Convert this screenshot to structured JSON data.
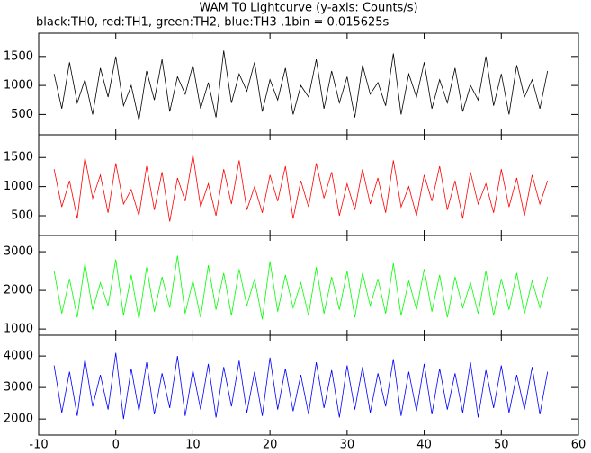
{
  "chart_data": [
    {
      "type": "line",
      "title": "WAM T0 Lightcurve (y-axis: Counts/s)",
      "subtitle": "black:TH0, red:TH1, green:TH2, blue:TH3 ,1bin = 0.015625s",
      "x": [
        -8,
        -7,
        -6,
        -5,
        -4,
        -3,
        -2,
        -1,
        0,
        1,
        2,
        3,
        4,
        5,
        6,
        7,
        8,
        9,
        10,
        11,
        12,
        13,
        14,
        15,
        16,
        17,
        18,
        19,
        20,
        21,
        22,
        23,
        24,
        25,
        26,
        27,
        28,
        29,
        30,
        31,
        32,
        33,
        34,
        35,
        36,
        37,
        38,
        39,
        40,
        41,
        42,
        43,
        44,
        45,
        46,
        47,
        48,
        49,
        50,
        51,
        52,
        53,
        54,
        55,
        56
      ],
      "values": [
        1200,
        600,
        1400,
        700,
        1100,
        500,
        1300,
        800,
        1500,
        650,
        1000,
        400,
        1250,
        750,
        1450,
        550,
        1150,
        850,
        1350,
        600,
        1050,
        450,
        1600,
        700,
        1200,
        900,
        1400,
        550,
        1100,
        750,
        1300,
        500,
        1000,
        800,
        1450,
        600,
        1250,
        700,
        1150,
        450,
        1350,
        850,
        1050,
        650,
        1550,
        500,
        1200,
        800,
        1400,
        600,
        1100,
        700,
        1300,
        550,
        1000,
        750,
        1500,
        650,
        1200,
        500,
        1350,
        800,
        1100,
        600,
        1250
      ],
      "color": "#000000",
      "xlim": [
        -10,
        60
      ],
      "ylim": [
        150,
        1900
      ],
      "yticks": [
        500,
        1000,
        1500
      ]
    },
    {
      "type": "line",
      "x": [
        -8,
        -7,
        -6,
        -5,
        -4,
        -3,
        -2,
        -1,
        0,
        1,
        2,
        3,
        4,
        5,
        6,
        7,
        8,
        9,
        10,
        11,
        12,
        13,
        14,
        15,
        16,
        17,
        18,
        19,
        20,
        21,
        22,
        23,
        24,
        25,
        26,
        27,
        28,
        29,
        30,
        31,
        32,
        33,
        34,
        35,
        36,
        37,
        38,
        39,
        40,
        41,
        42,
        43,
        44,
        45,
        46,
        47,
        48,
        49,
        50,
        51,
        52,
        53,
        54,
        55,
        56
      ],
      "values": [
        1300,
        650,
        1100,
        450,
        1500,
        800,
        1200,
        550,
        1400,
        700,
        950,
        500,
        1350,
        600,
        1250,
        400,
        1150,
        750,
        1550,
        650,
        1050,
        500,
        1300,
        700,
        1450,
        600,
        1000,
        550,
        1200,
        750,
        1350,
        450,
        1100,
        650,
        1400,
        800,
        1250,
        500,
        1050,
        600,
        1300,
        700,
        1150,
        550,
        1450,
        650,
        1000,
        500,
        1200,
        750,
        1350,
        600,
        1100,
        450,
        1250,
        700,
        1050,
        550,
        1300,
        650,
        1150,
        500,
        1200,
        700,
        1100
      ],
      "color": "#ff0000",
      "xlim": [
        -10,
        60
      ],
      "ylim": [
        160,
        1890
      ],
      "yticks": [
        500,
        1000,
        1500
      ]
    },
    {
      "type": "line",
      "x": [
        -8,
        -7,
        -6,
        -5,
        -4,
        -3,
        -2,
        -1,
        0,
        1,
        2,
        3,
        4,
        5,
        6,
        7,
        8,
        9,
        10,
        11,
        12,
        13,
        14,
        15,
        16,
        17,
        18,
        19,
        20,
        21,
        22,
        23,
        24,
        25,
        26,
        27,
        28,
        29,
        30,
        31,
        32,
        33,
        34,
        35,
        36,
        37,
        38,
        39,
        40,
        41,
        42,
        43,
        44,
        45,
        46,
        47,
        48,
        49,
        50,
        51,
        52,
        53,
        54,
        55,
        56
      ],
      "values": [
        2500,
        1400,
        2300,
        1300,
        2700,
        1500,
        2200,
        1600,
        2800,
        1350,
        2400,
        1250,
        2600,
        1450,
        2350,
        1550,
        2900,
        1400,
        2250,
        1300,
        2650,
        1500,
        2450,
        1350,
        2550,
        1600,
        2300,
        1250,
        2750,
        1450,
        2400,
        1550,
        2200,
        1350,
        2600,
        1400,
        2350,
        1500,
        2500,
        1300,
        2450,
        1600,
        2300,
        1400,
        2700,
        1350,
        2250,
        1500,
        2550,
        1450,
        2400,
        1300,
        2350,
        1550,
        2200,
        1400,
        2500,
        1350,
        2300,
        1500,
        2450,
        1400,
        2250,
        1550,
        2350
      ],
      "color": "#00ff00",
      "xlim": [
        -10,
        60
      ],
      "ylim": [
        840,
        3420
      ],
      "yticks": [
        1000,
        2000,
        3000
      ]
    },
    {
      "type": "line",
      "x": [
        -8,
        -7,
        -6,
        -5,
        -4,
        -3,
        -2,
        -1,
        0,
        1,
        2,
        3,
        4,
        5,
        6,
        7,
        8,
        9,
        10,
        11,
        12,
        13,
        14,
        15,
        16,
        17,
        18,
        19,
        20,
        21,
        22,
        23,
        24,
        25,
        26,
        27,
        28,
        29,
        30,
        31,
        32,
        33,
        34,
        35,
        36,
        37,
        38,
        39,
        40,
        41,
        42,
        43,
        44,
        45,
        46,
        47,
        48,
        49,
        50,
        51,
        52,
        53,
        54,
        55,
        56
      ],
      "values": [
        3700,
        2200,
        3500,
        2100,
        3900,
        2400,
        3400,
        2300,
        4100,
        2000,
        3600,
        2250,
        3800,
        2150,
        3450,
        2350,
        4000,
        2100,
        3550,
        2300,
        3750,
        2050,
        3650,
        2400,
        3850,
        2200,
        3500,
        2100,
        3950,
        2300,
        3600,
        2250,
        3400,
        2150,
        3800,
        2350,
        3550,
        2050,
        3700,
        2300,
        3650,
        2200,
        3450,
        2400,
        3900,
        2100,
        3500,
        2250,
        3750,
        2150,
        3600,
        2300,
        3450,
        2200,
        3800,
        2050,
        3550,
        2350,
        3700,
        2200,
        3400,
        2300,
        3650,
        2150,
        3500
      ],
      "color": "#0000ff",
      "xlim": [
        -10,
        60
      ],
      "ylim": [
        1490,
        4660
      ],
      "yticks": [
        2000,
        3000,
        4000
      ],
      "xticks": [
        -10,
        0,
        10,
        20,
        30,
        40,
        50,
        60
      ]
    }
  ]
}
